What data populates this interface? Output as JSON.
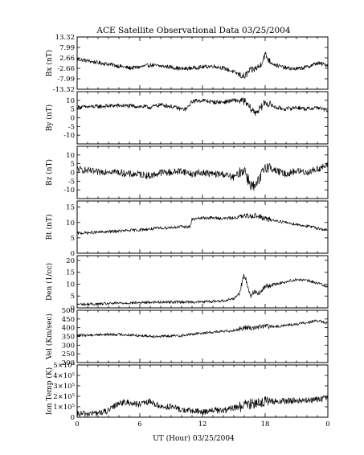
{
  "chart_data": {
    "type": "line",
    "title": "ACE Satellite Observational Data   03/25/2004",
    "xlabel": "UT (Hour)   03/25/2004",
    "x_ticks": [
      "0",
      "6",
      "12",
      "18",
      "0"
    ],
    "x_tick_values": [
      0,
      6,
      12,
      18,
      24
    ],
    "xlim": [
      0,
      24
    ],
    "grid": false,
    "panels": [
      {
        "name": "bx",
        "ylabel": "Bx (nT)",
        "ylim": [
          -13.32,
          13.32
        ],
        "y_ticks": [
          "13.32",
          "7.99",
          "2.66",
          "-2.66",
          "-7.99",
          "-13.32"
        ],
        "y_tick_values": [
          13.32,
          7.99,
          2.66,
          -2.66,
          -7.99,
          -13.32
        ],
        "series": [
          {
            "x": [
              0,
              1,
              2,
              3,
              4,
              5,
              6,
              7,
              8,
              9,
              10,
              11,
              12,
              13,
              14,
              15,
              15.6,
              16,
              16.5,
              17,
              17.5,
              18,
              18.5,
              19,
              20,
              21,
              22,
              23,
              24
            ],
            "y": [
              2.0,
              1.2,
              0.2,
              -0.5,
              -1.5,
              -2.5,
              -2.0,
              -1.0,
              -1.5,
              -2.0,
              -3.0,
              -2.5,
              -2.0,
              -1.5,
              -2.5,
              -4.5,
              -6.0,
              -7.0,
              -4.0,
              -3.0,
              -1.5,
              4.5,
              0.5,
              -1.0,
              -2.5,
              -3.0,
              -2.0,
              0.0,
              -1.0
            ],
            "noise": 1.0
          }
        ]
      },
      {
        "name": "by",
        "ylabel": "By (nT)",
        "ylim": [
          -15,
          15
        ],
        "y_ticks": [
          "10",
          "5",
          "0",
          "-5",
          "-10"
        ],
        "y_tick_values": [
          10,
          5,
          0,
          -5,
          -10
        ],
        "series": [
          {
            "x": [
              0,
              2,
              4,
              6,
              7,
              8,
              9,
              10,
              10.5,
              11,
              12,
              13,
              14,
              15,
              16,
              16.5,
              17,
              17.5,
              18,
              19,
              20,
              21,
              22,
              23,
              24
            ],
            "y": [
              6,
              6.5,
              7,
              6.5,
              6,
              7.5,
              6.5,
              5,
              5,
              9.5,
              10,
              9,
              9,
              10,
              9.5,
              6,
              3,
              5,
              9,
              6,
              5,
              6,
              5,
              6,
              4
            ],
            "noise": 1.2
          }
        ]
      },
      {
        "name": "bz",
        "ylabel": "Bz (nT)",
        "ylim": [
          -15,
          15
        ],
        "y_ticks": [
          "10",
          "5",
          "0",
          "-5",
          "-10"
        ],
        "y_tick_values": [
          10,
          5,
          0,
          -5,
          -10
        ],
        "series": [
          {
            "x": [
              0,
              1,
              2,
              3,
              4,
              5,
              6,
              7,
              8,
              9,
              10,
              11,
              12,
              13,
              14,
              15,
              16,
              16.5,
              17,
              17.5,
              18,
              19,
              20,
              21,
              22,
              23,
              24
            ],
            "y": [
              2,
              1,
              0,
              1,
              0,
              -1,
              -1,
              -2,
              0,
              0,
              1,
              -1,
              0,
              -1,
              -1,
              -3,
              2,
              -6,
              -9,
              -4,
              4,
              1,
              -1,
              1,
              0,
              2,
              4
            ],
            "noise": 2.0
          }
        ]
      },
      {
        "name": "bt",
        "ylabel": "Bt (nT)",
        "ylim": [
          0,
          17
        ],
        "y_ticks": [
          "15",
          "10",
          "5",
          "0"
        ],
        "y_tick_values": [
          15,
          10,
          5,
          0
        ],
        "series": [
          {
            "x": [
              0,
              2,
              4,
              6,
              8,
              10,
              10.8,
              11,
              12,
              13,
              14,
              15,
              16,
              17,
              17.5,
              18,
              19,
              20,
              21,
              22,
              23,
              24
            ],
            "y": [
              6.5,
              6.8,
              7.2,
              7.6,
              8.2,
              8.6,
              8.6,
              11,
              11.5,
              11.5,
              11.3,
              11.5,
              12,
              12.3,
              11.8,
              11.2,
              10.6,
              10,
              9.4,
              8.8,
              8.2,
              7.4
            ],
            "noise": 0.5
          }
        ]
      },
      {
        "name": "den",
        "ylabel": "Den (1/cc)",
        "ylim": [
          0,
          22
        ],
        "y_ticks": [
          "20",
          "15",
          "10",
          "5",
          "0"
        ],
        "y_tick_values": [
          20,
          15,
          10,
          5,
          0
        ],
        "series": [
          {
            "x": [
              0,
              2,
              4,
              6,
              8,
              10,
              12,
              14,
              15,
              15.5,
              16,
              16.3,
              16.6,
              17,
              17.5,
              18,
              19,
              20,
              21,
              22,
              23,
              24
            ],
            "y": [
              1.5,
              1.6,
              2,
              2.2,
              2.5,
              2.5,
              2.5,
              3,
              4,
              6,
              14,
              10,
              5,
              7,
              6,
              9,
              10,
              11,
              12,
              11.5,
              10.5,
              9
            ],
            "noise": 0.6
          }
        ]
      },
      {
        "name": "vel",
        "ylabel": "Vel (Km/sec)",
        "ylim": [
          200,
          500
        ],
        "y_ticks": [
          "500",
          "450",
          "400",
          "350",
          "300",
          "250",
          "200"
        ],
        "y_tick_values": [
          500,
          450,
          400,
          350,
          300,
          250,
          200
        ],
        "series": [
          {
            "x": [
              0,
              2,
              4,
              6,
              8,
              10,
              12,
              13,
              14,
              15,
              16,
              17,
              18,
              19,
              20,
              21,
              22,
              23,
              24
            ],
            "y": [
              355,
              360,
              362,
              355,
              350,
              355,
              370,
              375,
              378,
              385,
              400,
              400,
              410,
              405,
              415,
              420,
              430,
              440,
              425
            ],
            "noise": 8
          }
        ]
      },
      {
        "name": "temp",
        "ylabel": "Ion Temp (K)",
        "ylim": [
          0,
          500000
        ],
        "y_ticks": [
          "5×10⁵",
          "4×10⁵",
          "3×10⁵",
          "2×10⁵",
          "1×10⁵",
          "0"
        ],
        "y_tick_values": [
          500000,
          400000,
          300000,
          200000,
          100000,
          0
        ],
        "series": [
          {
            "x": [
              0,
              2,
              3,
              4,
              5,
              6,
              7,
              8,
              9,
              10,
              11,
              12,
              13,
              14,
              15,
              16,
              17,
              18,
              19,
              20,
              21,
              22,
              23,
              24
            ],
            "y": [
              30000,
              40000,
              60000,
              140000,
              140000,
              120000,
              150000,
              100000,
              100000,
              70000,
              60000,
              50000,
              70000,
              60000,
              90000,
              110000,
              140000,
              150000,
              150000,
              155000,
              160000,
              160000,
              170000,
              180000
            ],
            "noise": 30000
          }
        ]
      }
    ]
  }
}
